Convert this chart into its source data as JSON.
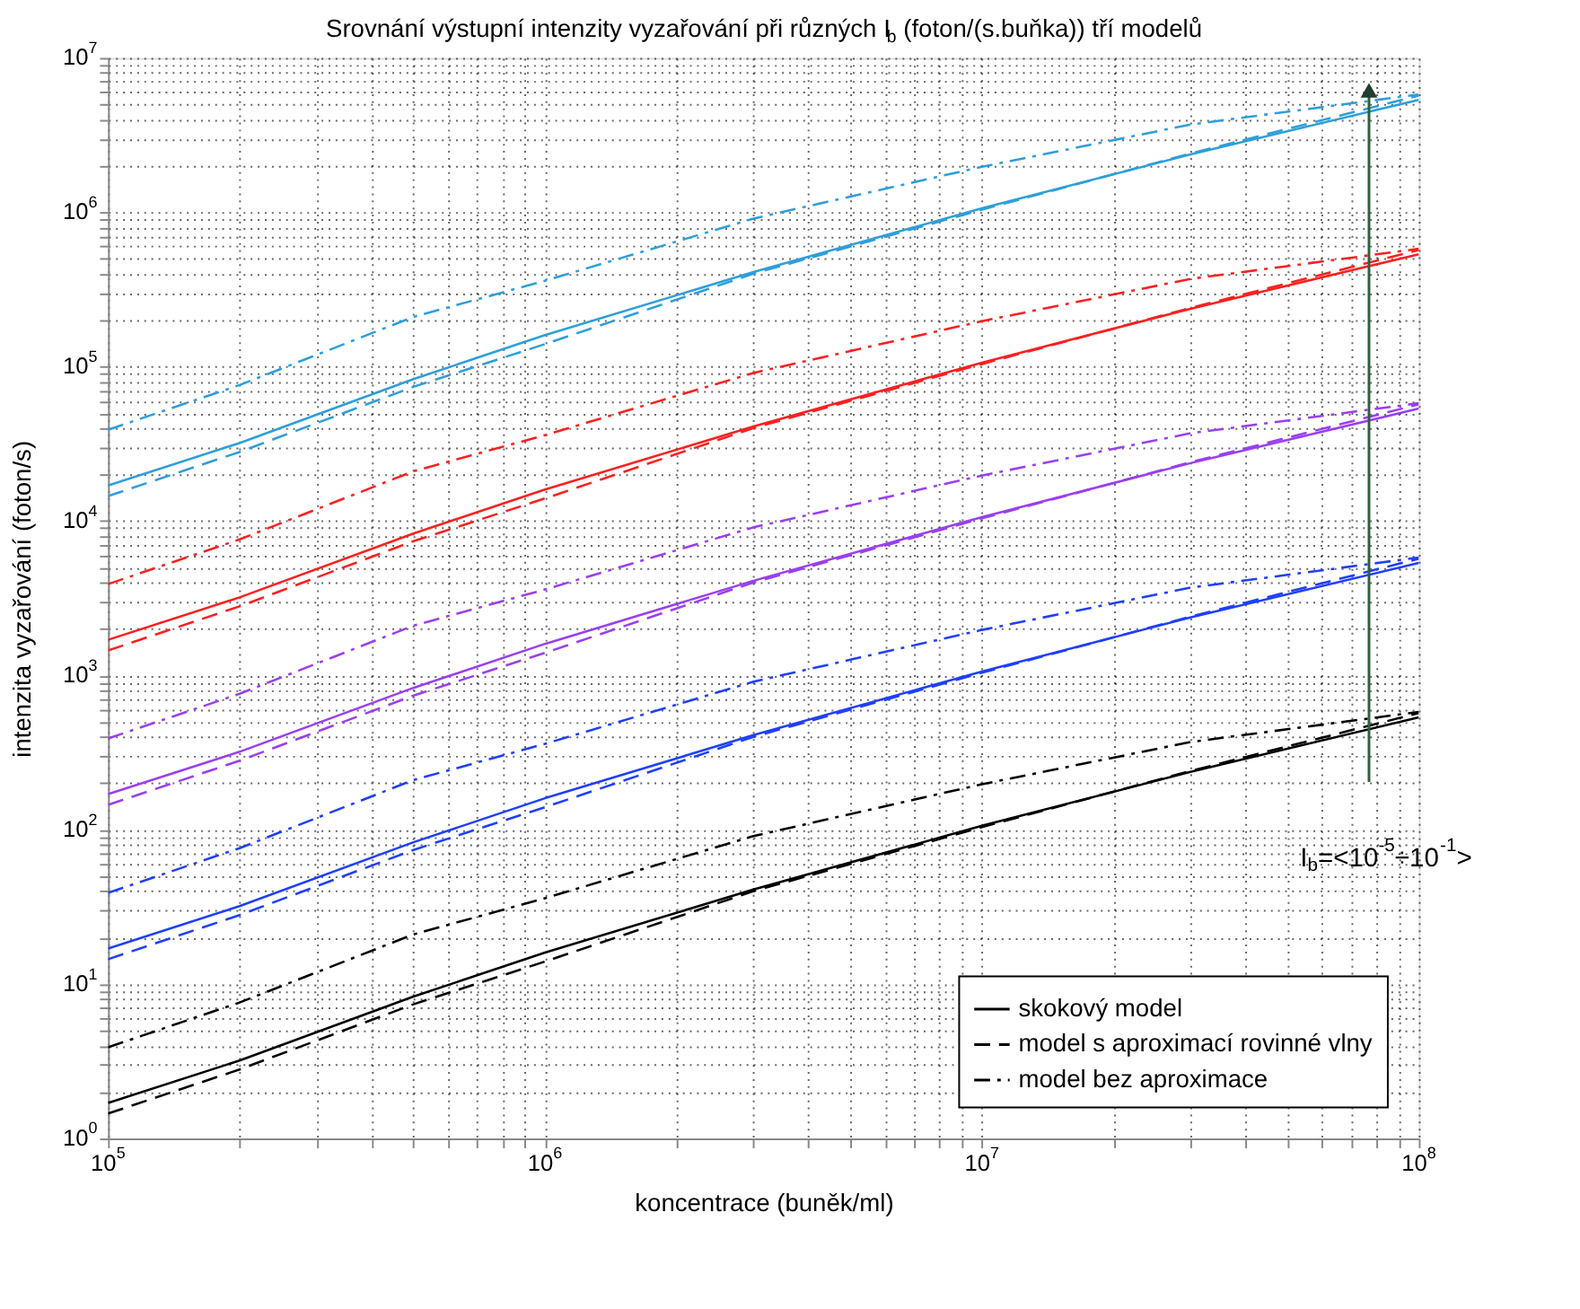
{
  "chart_data": {
    "type": "line",
    "title": "Srovnání výstupní intenzity vyzařování při různých I$_{b}$ (foton/(s.buňka)) tří modelů",
    "xlabel": "koncentrace (buněk/ml)",
    "ylabel": "intenzita vyzařování (foton/s)",
    "log": "xy",
    "grid": true,
    "legend": "bottom right",
    "marker": "none",
    "xlim": [
      100000,
      100000000
    ],
    "ylim": [
      1,
      10000000
    ],
    "xticks": [
      {
        "value": 100000,
        "label": "10$^{5}$"
      },
      {
        "value": 200000,
        "label": null
      },
      {
        "value": 300000,
        "label": null
      },
      {
        "value": 400000,
        "label": null
      },
      {
        "value": 500000,
        "label": null
      },
      {
        "value": 600000,
        "label": null
      },
      {
        "value": 700000,
        "label": null
      },
      {
        "value": 800000,
        "label": null
      },
      {
        "value": 900000,
        "label": null
      },
      {
        "value": 1000000,
        "label": "10$^{6}$"
      },
      {
        "value": 2000000,
        "label": null
      },
      {
        "value": 3000000,
        "label": null
      },
      {
        "value": 4000000,
        "label": null
      },
      {
        "value": 5000000,
        "label": null
      },
      {
        "value": 6000000,
        "label": null
      },
      {
        "value": 7000000,
        "label": null
      },
      {
        "value": 8000000,
        "label": null
      },
      {
        "value": 9000000,
        "label": null
      },
      {
        "value": 10000000,
        "label": "10$^{7}$"
      },
      {
        "value": 20000000,
        "label": null
      },
      {
        "value": 30000000,
        "label": null
      },
      {
        "value": 40000000,
        "label": null
      },
      {
        "value": 50000000,
        "label": null
      },
      {
        "value": 60000000,
        "label": null
      },
      {
        "value": 70000000,
        "label": null
      },
      {
        "value": 80000000,
        "label": null
      },
      {
        "value": 90000000,
        "label": null
      },
      {
        "value": 100000000,
        "label": "10$^{8}$"
      }
    ],
    "yticks": [
      {
        "value": 1,
        "label": "10$^{0}$"
      },
      {
        "value": 2,
        "label": null
      },
      {
        "value": 3,
        "label": null
      },
      {
        "value": 4,
        "label": null
      },
      {
        "value": 5,
        "label": null
      },
      {
        "value": 6,
        "label": null
      },
      {
        "value": 7,
        "label": null
      },
      {
        "value": 8,
        "label": null
      },
      {
        "value": 9,
        "label": null
      },
      {
        "value": 10,
        "label": "10$^{1}$"
      },
      {
        "value": 20,
        "label": null
      },
      {
        "value": 30,
        "label": null
      },
      {
        "value": 40,
        "label": null
      },
      {
        "value": 50,
        "label": null
      },
      {
        "value": 60,
        "label": null
      },
      {
        "value": 70,
        "label": null
      },
      {
        "value": 80,
        "label": null
      },
      {
        "value": 90,
        "label": null
      },
      {
        "value": 100,
        "label": "10$^{2}$"
      },
      {
        "value": 200,
        "label": null
      },
      {
        "value": 300,
        "label": null
      },
      {
        "value": 400,
        "label": null
      },
      {
        "value": 500,
        "label": null
      },
      {
        "value": 600,
        "label": null
      },
      {
        "value": 700,
        "label": null
      },
      {
        "value": 800,
        "label": null
      },
      {
        "value": 900,
        "label": null
      },
      {
        "value": 1000,
        "label": "10$^{3}$"
      },
      {
        "value": 2000,
        "label": null
      },
      {
        "value": 3000,
        "label": null
      },
      {
        "value": 4000,
        "label": null
      },
      {
        "value": 5000,
        "label": null
      },
      {
        "value": 6000,
        "label": null
      },
      {
        "value": 7000,
        "label": null
      },
      {
        "value": 8000,
        "label": null
      },
      {
        "value": 9000,
        "label": null
      },
      {
        "value": 10000,
        "label": "10$^{4}$"
      },
      {
        "value": 20000,
        "label": null
      },
      {
        "value": 30000,
        "label": null
      },
      {
        "value": 40000,
        "label": null
      },
      {
        "value": 50000,
        "label": null
      },
      {
        "value": 60000,
        "label": null
      },
      {
        "value": 70000,
        "label": null
      },
      {
        "value": 80000,
        "label": null
      },
      {
        "value": 90000,
        "label": null
      },
      {
        "value": 100000,
        "label": "10$^{5}$"
      },
      {
        "value": 200000,
        "label": null
      },
      {
        "value": 300000,
        "label": null
      },
      {
        "value": 400000,
        "label": null
      },
      {
        "value": 500000,
        "label": null
      },
      {
        "value": 600000,
        "label": null
      },
      {
        "value": 700000,
        "label": null
      },
      {
        "value": 800000,
        "label": null
      },
      {
        "value": 900000,
        "label": null
      },
      {
        "value": 1000000,
        "label": "10$^{6}$"
      },
      {
        "value": 2000000,
        "label": null
      },
      {
        "value": 3000000,
        "label": null
      },
      {
        "value": 4000000,
        "label": null
      },
      {
        "value": 5000000,
        "label": null
      },
      {
        "value": 6000000,
        "label": null
      },
      {
        "value": 7000000,
        "label": null
      },
      {
        "value": 8000000,
        "label": null
      },
      {
        "value": 9000000,
        "label": null
      },
      {
        "value": 10000000,
        "label": "10$^{7}$"
      }
    ],
    "x": [
      100000,
      200000,
      500000,
      1000000,
      3000000,
      10000000,
      30000000,
      100000000
    ],
    "series": [
      {
        "name": "skokový model",
        "color": "#000000",
        "line_style": "solid",
        "values": [
          1.7,
          3.2,
          8.3,
          16,
          41,
          106,
          237,
          535
        ]
      },
      {
        "name": "model s aproximací rovinné vlny",
        "color": "#000000",
        "line_style": "dashed",
        "values": [
          1.45,
          2.8,
          7.4,
          14,
          40,
          104,
          240,
          570
        ]
      },
      {
        "name": "model bez aproximace",
        "color": "#000000",
        "line_style": "dashdot",
        "values": [
          3.9,
          7.6,
          21,
          36,
          91,
          197,
          370,
          580
        ]
      },
      {
        "color": "#1f3fff",
        "line_style": "solid",
        "values": [
          17,
          32,
          83,
          160,
          410,
          1060,
          2370,
          5350
        ]
      },
      {
        "color": "#1f3fff",
        "line_style": "dashed",
        "values": [
          14.5,
          28,
          74,
          140,
          400,
          1040,
          2400,
          5700
        ]
      },
      {
        "color": "#1f3fff",
        "line_style": "dashdot",
        "values": [
          39,
          76,
          210,
          360,
          910,
          1970,
          3700,
          5800
        ]
      },
      {
        "color": "#9a3ff0",
        "line_style": "solid",
        "values": [
          170,
          320,
          830,
          1600,
          4100,
          10600,
          23700,
          53500
        ]
      },
      {
        "color": "#9a3ff0",
        "line_style": "dashed",
        "values": [
          145,
          280,
          740,
          1400,
          4000,
          10400,
          24000,
          57000
        ]
      },
      {
        "color": "#9a3ff0",
        "line_style": "dashdot",
        "values": [
          390,
          760,
          2100,
          3600,
          9100,
          19700,
          37000,
          58000
        ]
      },
      {
        "color": "#ff2020",
        "line_style": "solid",
        "values": [
          1700,
          3200,
          8300,
          16000,
          41000,
          106000,
          237000,
          535000
        ]
      },
      {
        "color": "#ff2020",
        "line_style": "dashed",
        "values": [
          1450,
          2800,
          7400,
          14000,
          40000,
          104000,
          240000,
          570000
        ]
      },
      {
        "color": "#ff2020",
        "line_style": "dashdot",
        "values": [
          3900,
          7600,
          21000,
          36000,
          91000,
          197000,
          370000,
          580000
        ]
      },
      {
        "color": "#2e9fd9",
        "line_style": "solid",
        "values": [
          17000,
          32000,
          83000,
          160000,
          410000,
          1060000,
          2370000,
          5350000
        ]
      },
      {
        "color": "#2e9fd9",
        "line_style": "dashed",
        "values": [
          14500,
          28000,
          74000,
          140000,
          400000,
          1040000,
          2400000,
          5700000
        ]
      },
      {
        "color": "#2e9fd9",
        "line_style": "dashdot",
        "values": [
          39000,
          76000,
          210000,
          360000,
          910000,
          1970000,
          3700000,
          5800000
        ]
      }
    ],
    "annotations": [
      "I$_{b}$=<10$^{-5}$÷10$^{-1}$>"
    ]
  }
}
